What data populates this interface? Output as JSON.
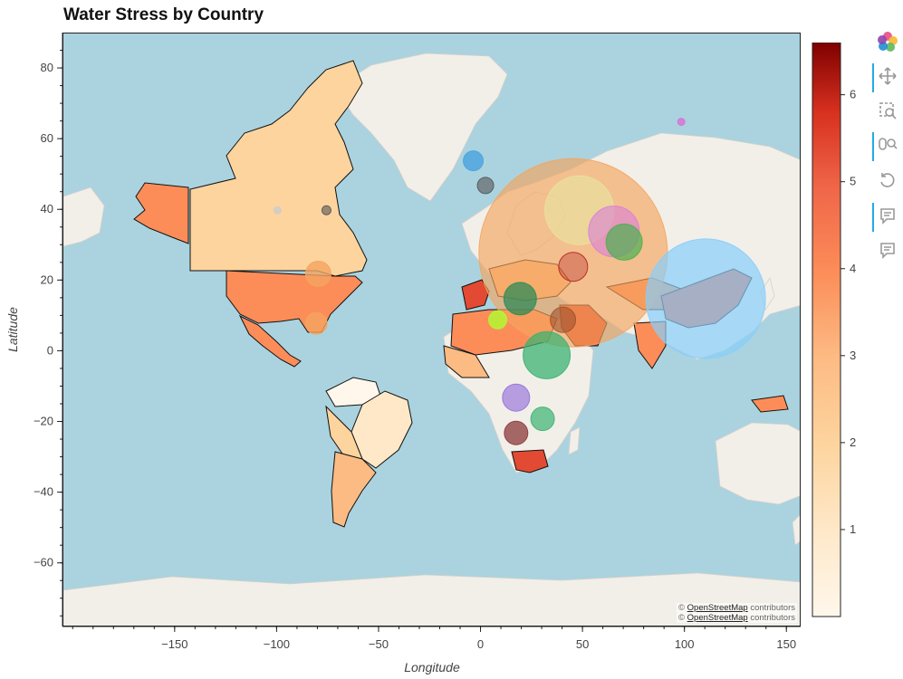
{
  "title": "Water Stress by Country",
  "axes": {
    "xlabel": "Longitude",
    "ylabel": "Latitude",
    "xticks": [
      -150,
      -100,
      -50,
      0,
      50,
      100,
      150
    ],
    "yticks": [
      80,
      60,
      40,
      20,
      0,
      -20,
      -40,
      -60
    ],
    "xlim": [
      -205,
      157
    ],
    "ylim": [
      -78,
      90
    ]
  },
  "attribution": {
    "prefix": "©",
    "link": "OpenStreetMap",
    "suffix": "contributors"
  },
  "colorbar": {
    "ticks": [
      1,
      2,
      3,
      4,
      5,
      6
    ],
    "range": [
      0,
      6.6
    ],
    "colormap": "OrRd"
  },
  "toolbar": {
    "tools": [
      "pan-tool",
      "box-zoom-tool",
      "wheel-zoom-tool",
      "reset-tool",
      "hover-tool-1",
      "hover-tool-2"
    ]
  },
  "chart_data": {
    "type": "choropleth-with-bubbles",
    "country_stress": [
      {
        "region": "canada",
        "value": 1.0
      },
      {
        "region": "usa",
        "value": 3.6
      },
      {
        "region": "alaska",
        "value": 3.6
      },
      {
        "region": "mexico",
        "value": 3.6
      },
      {
        "region": "brazil",
        "value": 1.0
      },
      {
        "region": "argentina",
        "value": 2.0
      },
      {
        "region": "south-america-west",
        "value": 1.2
      },
      {
        "region": "iberia",
        "value": 4.2
      },
      {
        "region": "north-africa",
        "value": 3.6
      },
      {
        "region": "china",
        "value": 4.0
      },
      {
        "region": "india",
        "value": 3.5
      },
      {
        "region": "australia",
        "value": 0.1
      },
      {
        "region": "southern-africa",
        "value": 4.2
      },
      {
        "region": "indonesia",
        "value": 3.2
      }
    ],
    "bubbles": [
      {
        "lon": 45,
        "lat": 28,
        "r": 104,
        "color": "#f4a460",
        "opacity": 0.65
      },
      {
        "lon": 110,
        "lat": 15,
        "r": 66,
        "color": "#87cefa",
        "opacity": 0.7
      },
      {
        "lon": 48,
        "lat": 40,
        "r": 38,
        "color": "#e6e6a0",
        "opacity": 0.6
      },
      {
        "lon": 65,
        "lat": 34,
        "r": 28,
        "color": "#d87fd8",
        "opacity": 0.6
      },
      {
        "lon": 70,
        "lat": 31,
        "r": 20,
        "color": "#4caf50",
        "opacity": 0.7
      },
      {
        "lon": 32,
        "lat": -1,
        "r": 26,
        "color": "#3cb371",
        "opacity": 0.75
      },
      {
        "lon": 19,
        "lat": 15,
        "r": 18,
        "color": "#2e8b57",
        "opacity": 0.75
      },
      {
        "lon": 17,
        "lat": -13,
        "r": 15,
        "color": "#9370db",
        "opacity": 0.65
      },
      {
        "lon": 30,
        "lat": -19,
        "r": 13,
        "color": "#3cb371",
        "opacity": 0.7
      },
      {
        "lon": 17,
        "lat": -23,
        "r": 13,
        "color": "#8b3a3a",
        "opacity": 0.75
      },
      {
        "lon": -80,
        "lat": 22,
        "r": 14,
        "color": "#f4a460",
        "opacity": 0.8
      },
      {
        "lon": -81,
        "lat": 8,
        "r": 12,
        "color": "#f4a460",
        "opacity": 0.8
      },
      {
        "lon": -4,
        "lat": 54,
        "r": 11,
        "color": "#4aa3df",
        "opacity": 0.8
      },
      {
        "lon": 2,
        "lat": 47,
        "r": 9,
        "color": "#555555",
        "opacity": 0.6
      },
      {
        "lon": 8,
        "lat": 9,
        "r": 10,
        "color": "#adff2f",
        "opacity": 0.8
      },
      {
        "lon": 40,
        "lat": 9,
        "r": 14,
        "color": "#a0522d",
        "opacity": 0.6
      },
      {
        "lon": 45,
        "lat": 24,
        "r": 16,
        "color": "#b22222",
        "opacity": 0.35
      },
      {
        "lon": 98,
        "lat": 65,
        "r": 4,
        "color": "#da70d6",
        "opacity": 0.8
      },
      {
        "lon": -100,
        "lat": 40,
        "r": 4,
        "color": "#cccccc",
        "opacity": 0.8
      },
      {
        "lon": -76,
        "lat": 40,
        "r": 5,
        "color": "#555555",
        "opacity": 0.6
      }
    ]
  }
}
